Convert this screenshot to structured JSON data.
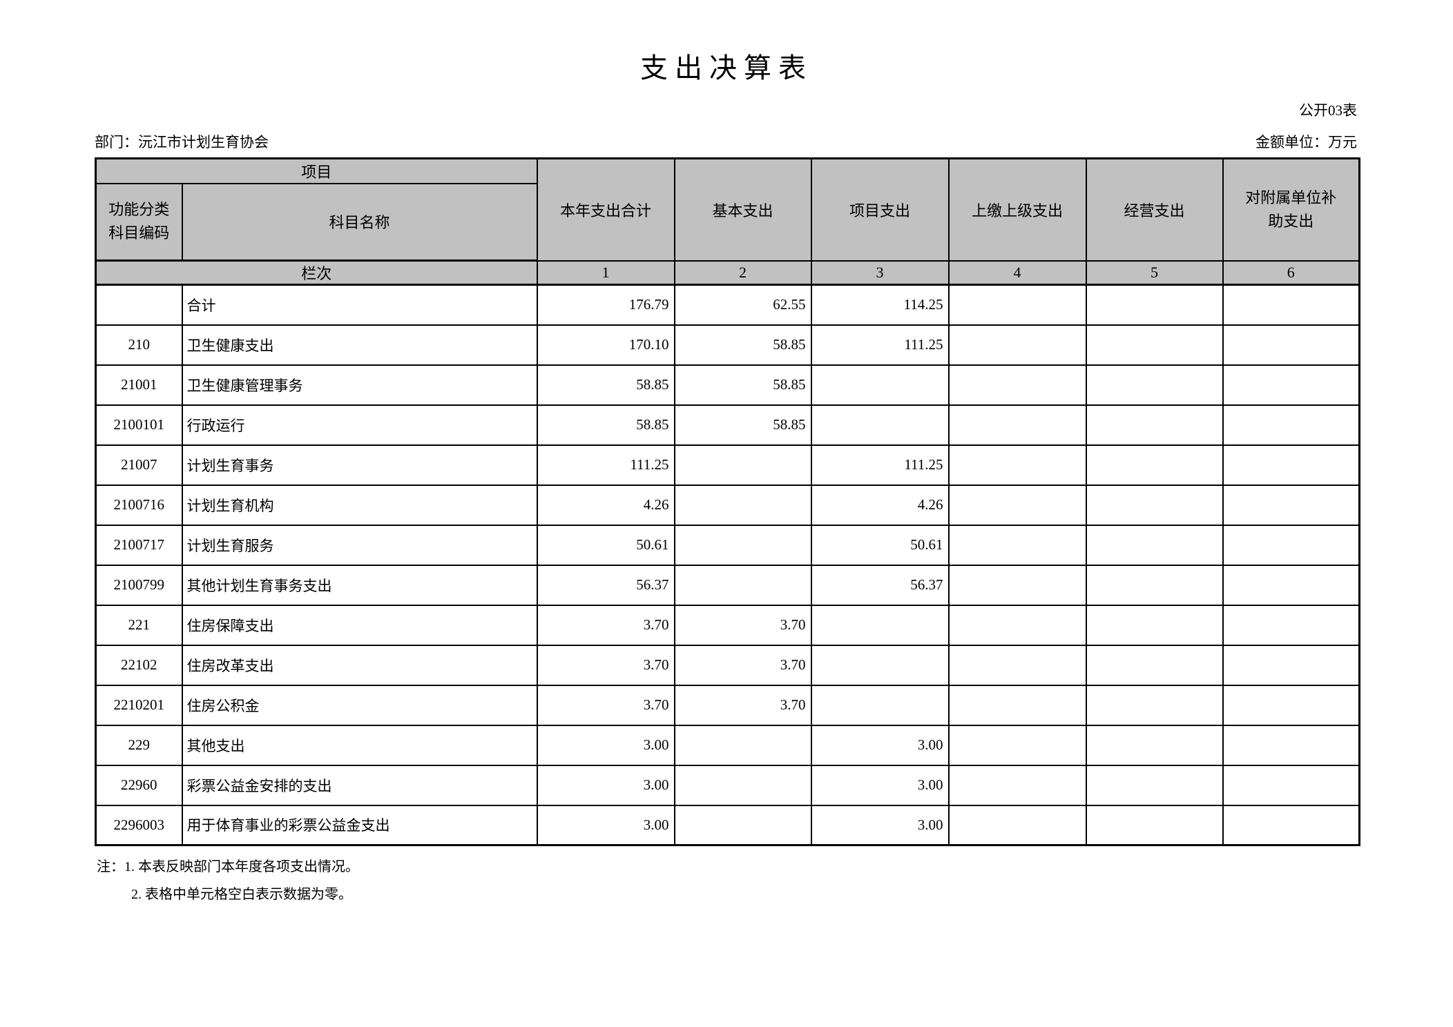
{
  "page": {
    "title": "支出决算表",
    "form_label": "公开03表",
    "department": "部门：沅江市计划生育协会",
    "unit": "金额单位：万元"
  },
  "table": {
    "header": {
      "project_group": "项目",
      "code_label": "功能分类\n科目编码",
      "name_label": "科目名称",
      "value_columns": [
        "本年支出合计",
        "基本支出",
        "项目支出",
        "上缴上级支出",
        "经营支出",
        "对附属单位补助支出"
      ],
      "row_index_label": "栏次",
      "column_indexes": [
        "1",
        "2",
        "3",
        "4",
        "5",
        "6"
      ]
    },
    "rows": [
      {
        "code": "",
        "name": "合计",
        "c1": "176.79",
        "c2": "62.55",
        "c3": "114.25",
        "c4": "",
        "c5": "",
        "c6": ""
      },
      {
        "code": "210",
        "name": "卫生健康支出",
        "c1": "170.10",
        "c2": "58.85",
        "c3": "111.25",
        "c4": "",
        "c5": "",
        "c6": ""
      },
      {
        "code": "21001",
        "name": "卫生健康管理事务",
        "c1": "58.85",
        "c2": "58.85",
        "c3": "",
        "c4": "",
        "c5": "",
        "c6": ""
      },
      {
        "code": "2100101",
        "name": "行政运行",
        "c1": "58.85",
        "c2": "58.85",
        "c3": "",
        "c4": "",
        "c5": "",
        "c6": ""
      },
      {
        "code": "21007",
        "name": "计划生育事务",
        "c1": "111.25",
        "c2": "",
        "c3": "111.25",
        "c4": "",
        "c5": "",
        "c6": ""
      },
      {
        "code": "2100716",
        "name": "计划生育机构",
        "c1": "4.26",
        "c2": "",
        "c3": "4.26",
        "c4": "",
        "c5": "",
        "c6": ""
      },
      {
        "code": "2100717",
        "name": "计划生育服务",
        "c1": "50.61",
        "c2": "",
        "c3": "50.61",
        "c4": "",
        "c5": "",
        "c6": ""
      },
      {
        "code": "2100799",
        "name": "其他计划生育事务支出",
        "c1": "56.37",
        "c2": "",
        "c3": "56.37",
        "c4": "",
        "c5": "",
        "c6": ""
      },
      {
        "code": "221",
        "name": "住房保障支出",
        "c1": "3.70",
        "c2": "3.70",
        "c3": "",
        "c4": "",
        "c5": "",
        "c6": ""
      },
      {
        "code": "22102",
        "name": "住房改革支出",
        "c1": "3.70",
        "c2": "3.70",
        "c3": "",
        "c4": "",
        "c5": "",
        "c6": ""
      },
      {
        "code": "2210201",
        "name": "住房公积金",
        "c1": "3.70",
        "c2": "3.70",
        "c3": "",
        "c4": "",
        "c5": "",
        "c6": ""
      },
      {
        "code": "229",
        "name": "其他支出",
        "c1": "3.00",
        "c2": "",
        "c3": "3.00",
        "c4": "",
        "c5": "",
        "c6": ""
      },
      {
        "code": "22960",
        "name": "彩票公益金安排的支出",
        "c1": "3.00",
        "c2": "",
        "c3": "3.00",
        "c4": "",
        "c5": "",
        "c6": ""
      },
      {
        "code": "2296003",
        "name": "用于体育事业的彩票公益金支出",
        "c1": "3.00",
        "c2": "",
        "c3": "3.00",
        "c4": "",
        "c5": "",
        "c6": ""
      }
    ]
  },
  "notes": {
    "line1": "注：1. 本表反映部门本年度各项支出情况。",
    "line2": "2. 表格中单元格空白表示数据为零。"
  }
}
